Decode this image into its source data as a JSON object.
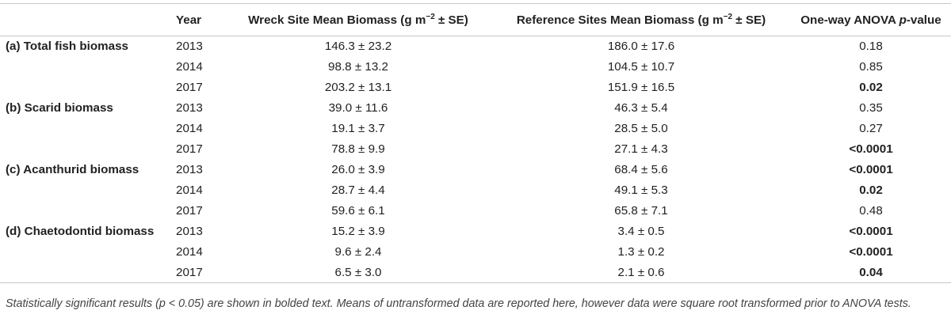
{
  "header": {
    "group": "",
    "year": "Year",
    "wreck_prefix": "Wreck Site Mean Biomass (g m",
    "ref_prefix": "Reference Sites Mean Biomass (g m",
    "unit_sup": "−2",
    "unit_suffix": " ± SE)",
    "p_prefix": "One-way ANOVA ",
    "p_italic": "p",
    "p_suffix": "-value"
  },
  "rows": [
    {
      "group": "(a) Total fish biomass",
      "year": "2013",
      "wreck": "146.3 ± 23.2",
      "reference": "186.0 ± 17.6",
      "p": "0.18",
      "significant": false
    },
    {
      "group": "",
      "year": "2014",
      "wreck": "98.8 ± 13.2",
      "reference": "104.5 ± 10.7",
      "p": "0.85",
      "significant": false
    },
    {
      "group": "",
      "year": "2017",
      "wreck": "203.2 ± 13.1",
      "reference": "151.9 ± 16.5",
      "p": "0.02",
      "significant": true
    },
    {
      "group": "(b) Scarid biomass",
      "year": "2013",
      "wreck": "39.0 ± 11.6",
      "reference": "46.3 ± 5.4",
      "p": "0.35",
      "significant": false
    },
    {
      "group": "",
      "year": "2014",
      "wreck": "19.1 ± 3.7",
      "reference": "28.5 ± 5.0",
      "p": "0.27",
      "significant": false
    },
    {
      "group": "",
      "year": "2017",
      "wreck": "78.8 ± 9.9",
      "reference": "27.1 ± 4.3",
      "p": "<0.0001",
      "significant": true
    },
    {
      "group": "(c) Acanthurid biomass",
      "year": "2013",
      "wreck": "26.0 ± 3.9",
      "reference": "68.4 ± 5.6",
      "p": "<0.0001",
      "significant": true
    },
    {
      "group": "",
      "year": "2014",
      "wreck": "28.7 ± 4.4",
      "reference": "49.1 ± 5.3",
      "p": "0.02",
      "significant": true
    },
    {
      "group": "",
      "year": "2017",
      "wreck": "59.6 ± 6.1",
      "reference": "65.8 ± 7.1",
      "p": "0.48",
      "significant": false
    },
    {
      "group": "(d) Chaetodontid biomass",
      "year": "2013",
      "wreck": "15.2 ± 3.9",
      "reference": "3.4 ± 0.5",
      "p": "<0.0001",
      "significant": true
    },
    {
      "group": "",
      "year": "2014",
      "wreck": "9.6 ± 2.4",
      "reference": "1.3 ± 0.2",
      "p": "<0.0001",
      "significant": true
    },
    {
      "group": "",
      "year": "2017",
      "wreck": "6.5 ± 3.0",
      "reference": "2.1 ± 0.6",
      "p": "0.04",
      "significant": true
    }
  ],
  "footnote": "Statistically significant results (p < 0.05) are shown in bolded text. Means of untransformed data are reported here, however data were square root transformed prior to ANOVA tests."
}
